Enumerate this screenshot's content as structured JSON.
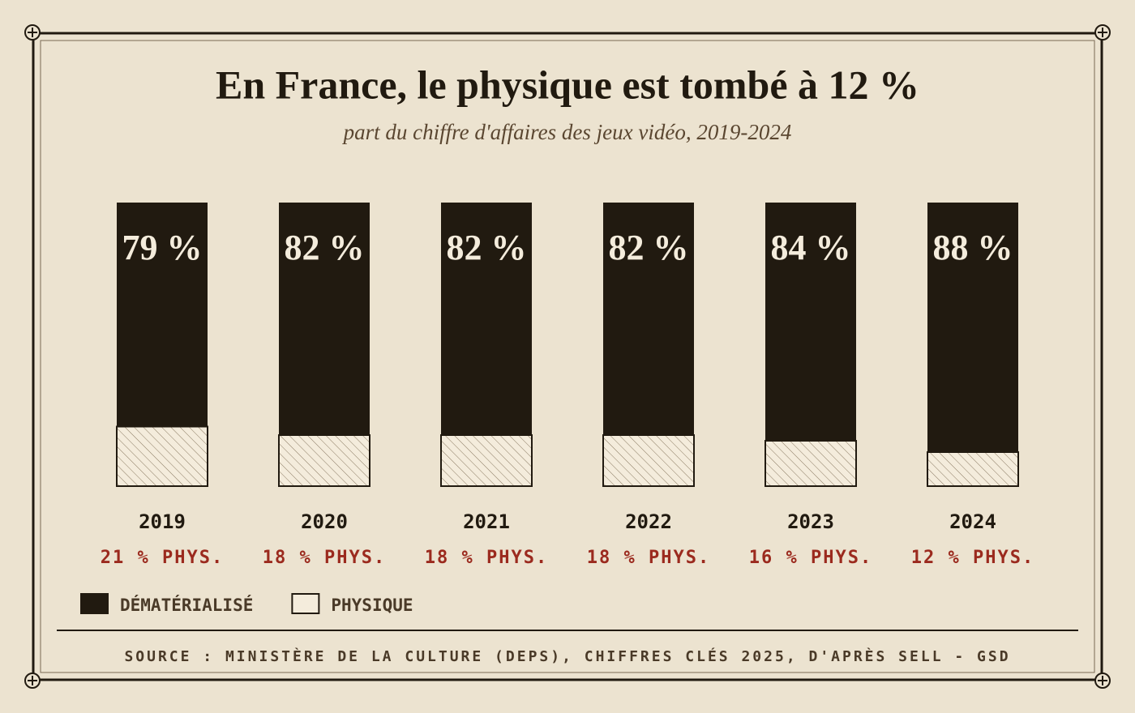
{
  "chart_data": {
    "type": "stacked-bar",
    "title": "En France, le physique est tombé à 12 %",
    "subtitle": "part du chiffre d'affaires des jeux vidéo, 2019-2024",
    "categories": [
      "2019",
      "2020",
      "2021",
      "2022",
      "2023",
      "2024"
    ],
    "series": [
      {
        "name": "DÉMATÉRIALISÉ",
        "color": "#211a10",
        "values": [
          79,
          82,
          82,
          82,
          84,
          88
        ],
        "value_labels": [
          "79 %",
          "82 %",
          "82 %",
          "82 %",
          "84 %",
          "88 %"
        ]
      },
      {
        "name": "PHYSIQUE",
        "color": "#f4ecdc",
        "values": [
          21,
          18,
          18,
          18,
          16,
          12
        ],
        "value_labels": [
          "21 % PHYS.",
          "18 % PHYS.",
          "18 % PHYS.",
          "18 % PHYS.",
          "16 % PHYS.",
          "12 % PHYS."
        ]
      }
    ],
    "source": "SOURCE : MINISTÈRE DE LA CULTURE (DEPS), CHIFFRES CLÉS 2025, D'APRÈS SELL - GSD"
  }
}
